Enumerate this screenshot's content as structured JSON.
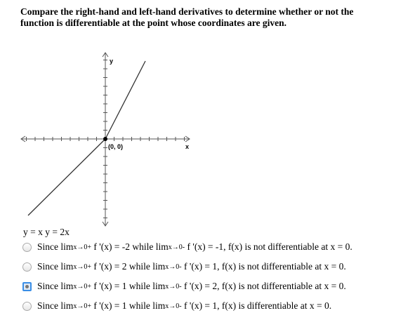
{
  "question": "Compare the right-hand and left-hand derivatives to determine whether or not the function is differentiable at the point whose coordinates are given.",
  "graph": {
    "y_label": "y",
    "x_label": "x",
    "point_label": "(0, 0)"
  },
  "function_label": "y = x y = 2x",
  "options": [
    {
      "selected": false,
      "parts": [
        {
          "text": "Since lim",
          "pos": "base"
        },
        {
          "text": "x→0",
          "pos": "sub"
        },
        {
          "text": "+",
          "pos": "sup"
        },
        {
          "text": " f '(x) = -2 while lim",
          "pos": "base"
        },
        {
          "text": "x→0",
          "pos": "sub"
        },
        {
          "text": "-",
          "pos": "sup"
        },
        {
          "text": " f '(x) = -1, f(x) is not differentiable at x = 0.",
          "pos": "base"
        }
      ]
    },
    {
      "selected": false,
      "parts": [
        {
          "text": "Since lim",
          "pos": "base"
        },
        {
          "text": "x→0",
          "pos": "sub"
        },
        {
          "text": "+",
          "pos": "sup"
        },
        {
          "text": " f '(x) = 2 while lim",
          "pos": "base"
        },
        {
          "text": "x→0",
          "pos": "sub"
        },
        {
          "text": "-",
          "pos": "sup"
        },
        {
          "text": " f '(x) = 1, f(x) is not differentiable at x = 0.",
          "pos": "base"
        }
      ]
    },
    {
      "selected": true,
      "parts": [
        {
          "text": "Since lim",
          "pos": "base"
        },
        {
          "text": "x→0",
          "pos": "sub"
        },
        {
          "text": "+",
          "pos": "sup"
        },
        {
          "text": " f '(x) = 1 while lim",
          "pos": "base"
        },
        {
          "text": "x→0",
          "pos": "sub"
        },
        {
          "text": "-",
          "pos": "sup"
        },
        {
          "text": " f '(x) = 2, f(x) is not differentiable at x = 0.",
          "pos": "base"
        }
      ]
    },
    {
      "selected": false,
      "parts": [
        {
          "text": "Since lim",
          "pos": "base"
        },
        {
          "text": "x→0",
          "pos": "sub"
        },
        {
          "text": "+",
          "pos": "sup"
        },
        {
          "text": " f '(x) = 1 while lim",
          "pos": "base"
        },
        {
          "text": "x→0",
          "pos": "sub"
        },
        {
          "text": "-",
          "pos": "sup"
        },
        {
          "text": " f '(x) = 1, f(x) is differentiable at x = 0.",
          "pos": "base"
        }
      ]
    }
  ]
}
